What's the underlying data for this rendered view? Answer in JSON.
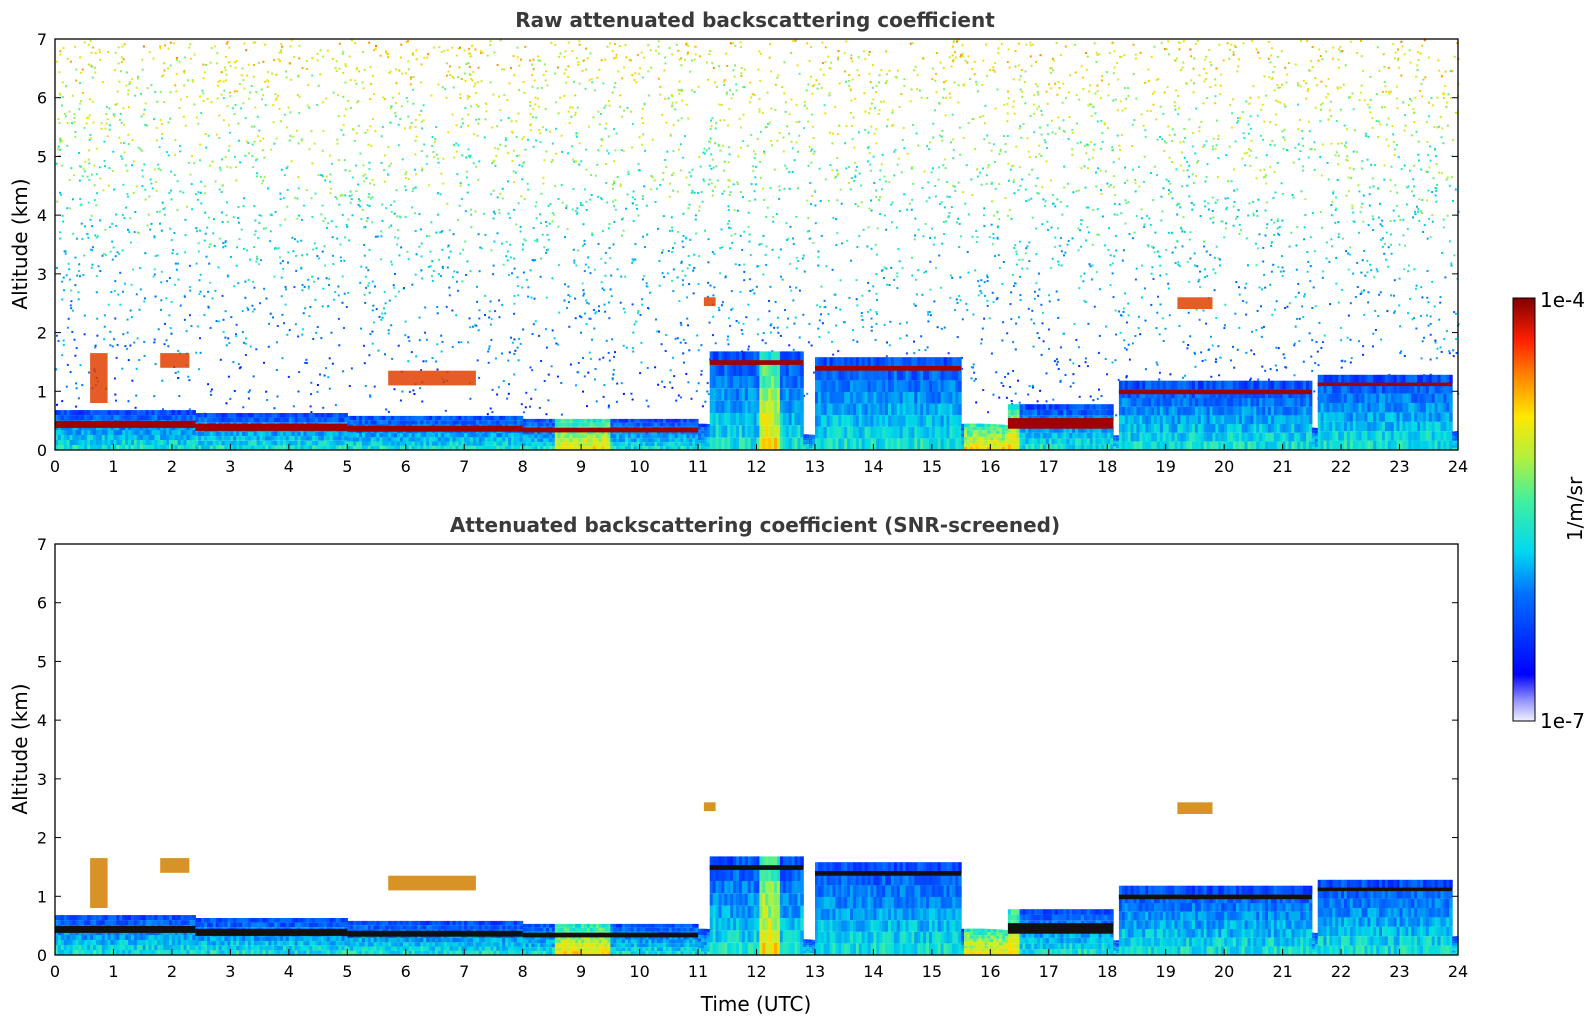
{
  "chart_data": [
    {
      "type": "heatmap",
      "title": "Raw attenuated backscattering coefficient",
      "xlabel": "",
      "ylabel": "Altitude (km)",
      "xlim": [
        0,
        24
      ],
      "ylim": [
        0,
        7
      ],
      "x_ticks": [
        "0",
        "1",
        "2",
        "3",
        "4",
        "5",
        "6",
        "7",
        "8",
        "9",
        "10",
        "11",
        "12",
        "13",
        "14",
        "15",
        "16",
        "17",
        "18",
        "19",
        "20",
        "21",
        "22",
        "23",
        "24"
      ],
      "y_ticks": [
        "0",
        "1",
        "2",
        "3",
        "4",
        "5",
        "6",
        "7"
      ],
      "screened": false,
      "layers": [
        {
          "t": [
            0,
            2.4
          ],
          "alt": [
            0.3,
            0.6
          ]
        },
        {
          "t": [
            2.4,
            5.0
          ],
          "alt": [
            0.25,
            0.55
          ]
        },
        {
          "t": [
            5.0,
            8.0
          ],
          "alt": [
            0.25,
            0.5
          ]
        },
        {
          "t": [
            8.0,
            11.0
          ],
          "alt": [
            0.25,
            0.45
          ]
        },
        {
          "t": [
            11.2,
            12.8
          ],
          "alt": [
            1.4,
            1.6
          ]
        },
        {
          "t": [
            13.0,
            15.5
          ],
          "alt": [
            1.3,
            1.5
          ]
        },
        {
          "t": [
            16.3,
            18.1
          ],
          "alt": [
            0.25,
            0.7
          ]
        },
        {
          "t": [
            18.2,
            21.5
          ],
          "alt": [
            0.9,
            1.1
          ]
        },
        {
          "t": [
            21.6,
            23.9
          ],
          "alt": [
            1.05,
            1.2
          ]
        }
      ],
      "clouds": [
        {
          "t": [
            0.6,
            0.9
          ],
          "alt": [
            0.8,
            1.65
          ]
        },
        {
          "t": [
            1.8,
            2.3
          ],
          "alt": [
            1.4,
            1.65
          ]
        },
        {
          "t": [
            5.7,
            7.2
          ],
          "alt": [
            1.1,
            1.35
          ]
        },
        {
          "t": [
            11.1,
            11.3
          ],
          "alt": [
            2.45,
            2.6
          ]
        },
        {
          "t": [
            19.2,
            19.8
          ],
          "alt": [
            2.4,
            2.6
          ]
        }
      ]
    },
    {
      "type": "heatmap",
      "title": "Attenuated backscattering coefficient (SNR-screened)",
      "xlabel": "Time (UTC)",
      "ylabel": "Altitude (km)",
      "xlim": [
        0,
        24
      ],
      "ylim": [
        0,
        7
      ],
      "x_ticks": [
        "0",
        "1",
        "2",
        "3",
        "4",
        "5",
        "6",
        "7",
        "8",
        "9",
        "10",
        "11",
        "12",
        "13",
        "14",
        "15",
        "16",
        "17",
        "18",
        "19",
        "20",
        "21",
        "22",
        "23",
        "24"
      ],
      "y_ticks": [
        "0",
        "1",
        "2",
        "3",
        "4",
        "5",
        "6",
        "7"
      ],
      "screened": true,
      "layers": [
        {
          "t": [
            0,
            2.4
          ],
          "alt": [
            0.3,
            0.6
          ]
        },
        {
          "t": [
            2.4,
            5.0
          ],
          "alt": [
            0.25,
            0.55
          ]
        },
        {
          "t": [
            5.0,
            8.0
          ],
          "alt": [
            0.25,
            0.5
          ]
        },
        {
          "t": [
            8.0,
            11.0
          ],
          "alt": [
            0.25,
            0.45
          ]
        },
        {
          "t": [
            11.2,
            12.8
          ],
          "alt": [
            1.4,
            1.6
          ]
        },
        {
          "t": [
            13.0,
            15.5
          ],
          "alt": [
            1.3,
            1.5
          ]
        },
        {
          "t": [
            16.3,
            18.1
          ],
          "alt": [
            0.25,
            0.7
          ]
        },
        {
          "t": [
            18.2,
            21.5
          ],
          "alt": [
            0.9,
            1.1
          ]
        },
        {
          "t": [
            21.6,
            23.9
          ],
          "alt": [
            1.05,
            1.2
          ]
        }
      ],
      "clouds": [
        {
          "t": [
            0.6,
            0.9
          ],
          "alt": [
            0.8,
            1.65
          ]
        },
        {
          "t": [
            1.8,
            2.3
          ],
          "alt": [
            1.4,
            1.65
          ]
        },
        {
          "t": [
            5.7,
            7.2
          ],
          "alt": [
            1.1,
            1.35
          ]
        },
        {
          "t": [
            11.1,
            11.3
          ],
          "alt": [
            2.45,
            2.6
          ]
        },
        {
          "t": [
            19.2,
            19.8
          ],
          "alt": [
            2.4,
            2.6
          ]
        }
      ]
    }
  ],
  "colorbar": {
    "label": "1/m/sr",
    "max_label": "1e-4",
    "min_label": "1e-7",
    "range": [
      1e-07,
      0.0001
    ],
    "scale": "log",
    "colormap": "jet"
  }
}
